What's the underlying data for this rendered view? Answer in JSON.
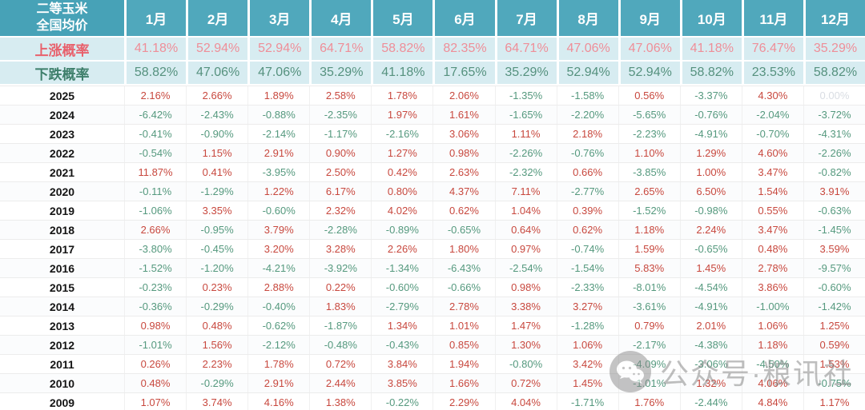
{
  "chart_data": {
    "type": "table",
    "corner": {
      "line1": "二等玉米",
      "line2": "全国均价"
    },
    "months": [
      "1月",
      "2月",
      "3月",
      "4月",
      "5月",
      "6月",
      "7月",
      "8月",
      "9月",
      "10月",
      "11月",
      "12月"
    ],
    "rise": {
      "label": "上涨概率",
      "values": [
        "41.18%",
        "52.94%",
        "52.94%",
        "64.71%",
        "58.82%",
        "82.35%",
        "64.71%",
        "47.06%",
        "47.06%",
        "41.18%",
        "76.47%",
        "35.29%"
      ]
    },
    "fall": {
      "label": "下跌概率",
      "values": [
        "58.82%",
        "47.06%",
        "47.06%",
        "35.29%",
        "41.18%",
        "17.65%",
        "35.29%",
        "52.94%",
        "52.94%",
        "58.82%",
        "23.53%",
        "58.82%"
      ]
    },
    "rows": [
      {
        "year": "2025",
        "values": [
          "2.16%",
          "2.66%",
          "1.89%",
          "2.58%",
          "1.78%",
          "2.06%",
          "-1.35%",
          "-1.58%",
          "0.56%",
          "-3.37%",
          "4.30%",
          "0.00%"
        ]
      },
      {
        "year": "2024",
        "values": [
          "-6.42%",
          "-2.43%",
          "-0.88%",
          "-2.35%",
          "1.97%",
          "1.61%",
          "-1.65%",
          "-2.20%",
          "-5.65%",
          "-0.76%",
          "-2.04%",
          "-3.72%"
        ]
      },
      {
        "year": "2023",
        "values": [
          "-0.41%",
          "-0.90%",
          "-2.14%",
          "-1.17%",
          "-2.16%",
          "3.06%",
          "1.11%",
          "2.18%",
          "-2.23%",
          "-4.91%",
          "-0.70%",
          "-4.31%"
        ]
      },
      {
        "year": "2022",
        "values": [
          "-0.54%",
          "1.15%",
          "2.91%",
          "0.90%",
          "1.27%",
          "0.98%",
          "-2.26%",
          "-0.76%",
          "1.10%",
          "1.29%",
          "4.60%",
          "-2.26%"
        ]
      },
      {
        "year": "2021",
        "values": [
          "11.87%",
          "0.41%",
          "-3.95%",
          "2.50%",
          "0.42%",
          "2.63%",
          "-2.32%",
          "0.66%",
          "-3.85%",
          "1.00%",
          "3.47%",
          "-0.82%"
        ]
      },
      {
        "year": "2020",
        "values": [
          "-0.11%",
          "-1.29%",
          "1.22%",
          "6.17%",
          "0.80%",
          "4.37%",
          "7.11%",
          "-2.77%",
          "2.65%",
          "6.50%",
          "1.54%",
          "3.91%"
        ]
      },
      {
        "year": "2019",
        "values": [
          "-1.06%",
          "3.35%",
          "-0.60%",
          "2.32%",
          "4.02%",
          "0.62%",
          "1.04%",
          "0.39%",
          "-1.52%",
          "-0.98%",
          "0.55%",
          "-0.63%"
        ]
      },
      {
        "year": "2018",
        "values": [
          "2.66%",
          "-0.95%",
          "3.79%",
          "-2.28%",
          "-0.89%",
          "-0.65%",
          "0.64%",
          "0.62%",
          "1.18%",
          "2.24%",
          "3.47%",
          "-1.45%"
        ]
      },
      {
        "year": "2017",
        "values": [
          "-3.80%",
          "-0.45%",
          "3.20%",
          "3.28%",
          "2.26%",
          "1.80%",
          "0.97%",
          "-0.74%",
          "1.59%",
          "-0.65%",
          "0.48%",
          "3.59%"
        ]
      },
      {
        "year": "2016",
        "values": [
          "-1.52%",
          "-1.20%",
          "-4.21%",
          "-3.92%",
          "-1.34%",
          "-6.43%",
          "-2.54%",
          "-1.54%",
          "5.83%",
          "1.45%",
          "2.78%",
          "-9.57%"
        ]
      },
      {
        "year": "2015",
        "values": [
          "-0.23%",
          "0.23%",
          "2.88%",
          "0.22%",
          "-0.60%",
          "-0.66%",
          "0.98%",
          "-2.33%",
          "-8.01%",
          "-4.54%",
          "3.86%",
          "-0.60%"
        ]
      },
      {
        "year": "2014",
        "values": [
          "-0.36%",
          "-0.29%",
          "-0.40%",
          "1.83%",
          "-2.79%",
          "2.78%",
          "3.38%",
          "3.27%",
          "-3.61%",
          "-4.91%",
          "-1.00%",
          "-1.42%"
        ]
      },
      {
        "year": "2013",
        "values": [
          "0.98%",
          "0.48%",
          "-0.62%",
          "-1.87%",
          "1.34%",
          "1.01%",
          "1.47%",
          "-1.28%",
          "0.79%",
          "2.01%",
          "1.06%",
          "1.25%"
        ]
      },
      {
        "year": "2012",
        "values": [
          "-1.01%",
          "1.56%",
          "-2.12%",
          "-0.48%",
          "-0.43%",
          "0.85%",
          "1.30%",
          "1.06%",
          "-2.17%",
          "-4.38%",
          "1.18%",
          "0.59%"
        ]
      },
      {
        "year": "2011",
        "values": [
          "0.26%",
          "2.23%",
          "1.78%",
          "0.72%",
          "3.84%",
          "1.94%",
          "-0.80%",
          "3.42%",
          "-4.09%",
          "-3.06%",
          "-4.50%",
          "1.53%"
        ]
      },
      {
        "year": "2010",
        "values": [
          "0.48%",
          "-0.29%",
          "2.91%",
          "2.44%",
          "3.85%",
          "1.66%",
          "0.72%",
          "1.45%",
          "-1.01%",
          "1.32%",
          "4.06%",
          "-0.75%"
        ]
      },
      {
        "year": "2009",
        "values": [
          "1.07%",
          "3.74%",
          "4.16%",
          "1.38%",
          "-0.22%",
          "2.29%",
          "4.04%",
          "-1.71%",
          "1.76%",
          "-2.44%",
          "4.84%",
          "1.17%"
        ]
      }
    ]
  },
  "watermark": {
    "text": "公众号·粮讯社",
    "icon": "wechat-icon"
  },
  "colors": {
    "header_teal": "#50A8BC",
    "corner_teal": "#47A2B7",
    "probability_row_bg": "#D7ECF1",
    "rise_label": "#E8616C",
    "rise_value": "#EF8E98",
    "fall_label": "#3E7F6B",
    "fall_value": "#55917E",
    "positive_red": "#C8483E",
    "negative_green": "#55997E",
    "zero_gray": "#D9DDE3",
    "watermark_gray": "#7F7F7F"
  }
}
